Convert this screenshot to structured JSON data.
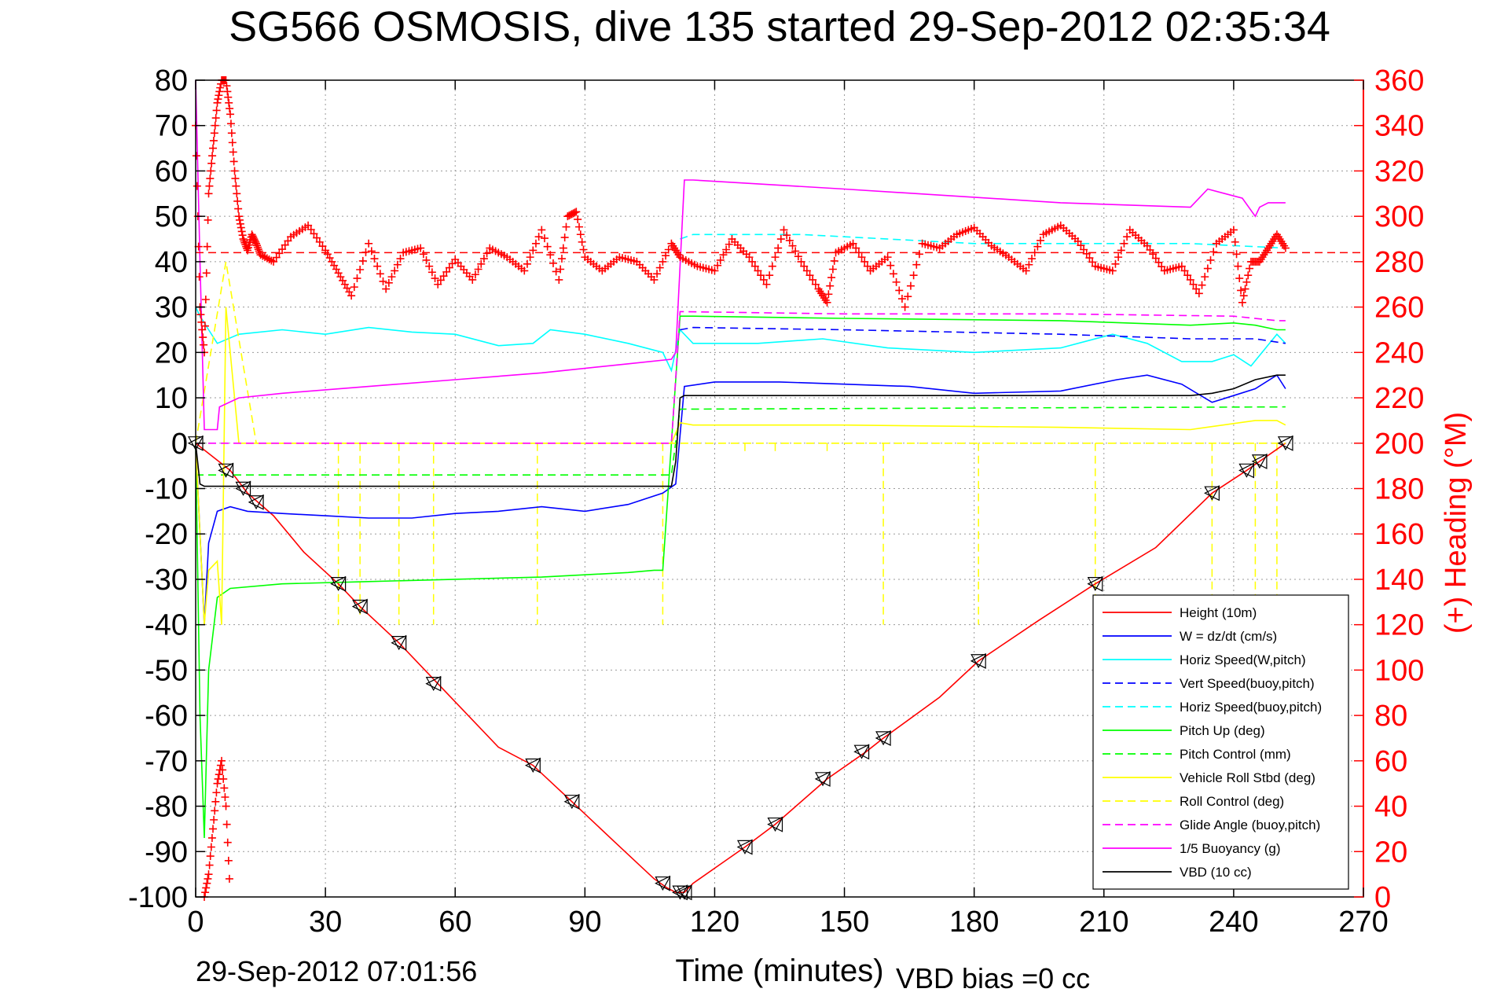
{
  "chart_data": {
    "type": "line",
    "title": "SG566 OSMOSIS, dive 135 started 29-Sep-2012 02:35:34",
    "xlabel": "Time (minutes)",
    "ylabel_right": "(+) Heading (°M)",
    "footer_left": "29-Sep-2012 07:01:56",
    "footer_right": "VBD bias =0 cc",
    "xlim": [
      0,
      270
    ],
    "ylim_left": [
      -100,
      80
    ],
    "ylim_right": [
      0,
      360
    ],
    "xticks": [
      0,
      30,
      60,
      90,
      120,
      150,
      180,
      210,
      240,
      270
    ],
    "yticks_left": [
      -100,
      -90,
      -80,
      -70,
      -60,
      -50,
      -40,
      -30,
      -20,
      -10,
      0,
      10,
      20,
      30,
      40,
      50,
      60,
      70,
      80
    ],
    "yticks_right": [
      0,
      20,
      40,
      60,
      80,
      100,
      120,
      140,
      160,
      180,
      200,
      220,
      240,
      260,
      280,
      300,
      320,
      340,
      360
    ],
    "grid": true,
    "legend_position": "bottom-right",
    "colors": {
      "height": "#ff0000",
      "w": "#0000ff",
      "horiz_speed": "#00ffff",
      "pitch": "#00ff00",
      "roll": "#ffff00",
      "glide": "#ff00ff",
      "buoyancy": "#ff00ff",
      "vbd": "#000000",
      "heading": "#ff0000"
    },
    "series": [
      {
        "name": "Height (10m)",
        "color": "#ff0000",
        "style": "solid",
        "x": [
          0,
          4,
          8,
          12,
          18,
          25,
          33,
          38,
          47,
          56,
          70,
          78,
          87,
          97,
          106,
          109,
          111,
          112.5,
          113,
          115,
          121,
          127,
          134,
          146,
          155,
          159,
          172,
          181,
          195,
          208,
          222,
          235,
          243,
          246,
          252
        ],
        "y": [
          0,
          -3,
          -6,
          -11,
          -16,
          -24,
          -31,
          -36,
          -44,
          -53,
          -67,
          -71,
          -79,
          -88,
          -96,
          -98,
          -99,
          -99,
          -99,
          -97,
          -93,
          -89,
          -84,
          -74,
          -68,
          -65,
          -56,
          -48,
          -39,
          -31,
          -23,
          -11,
          -6,
          -4,
          0
        ]
      },
      {
        "name": "W = dz/dt (cm/s)",
        "color": "#0000ff",
        "style": "solid",
        "x": [
          0,
          2,
          3,
          5,
          8,
          12,
          20,
          30,
          40,
          50,
          60,
          70,
          80,
          90,
          100,
          108,
          111,
          113,
          120,
          135,
          150,
          165,
          180,
          200,
          213,
          220,
          228,
          235,
          240,
          245,
          250,
          252
        ],
        "y": [
          0,
          -40,
          -22,
          -15,
          -14,
          -15,
          -15.5,
          -16,
          -16.5,
          -16.5,
          -15.5,
          -15,
          -14,
          -15,
          -13.5,
          -11,
          -9,
          12.5,
          13.5,
          13.5,
          13,
          12.5,
          11,
          11.5,
          14,
          15,
          13,
          9,
          10.5,
          12,
          15,
          12
        ]
      },
      {
        "name": "Horiz Speed(W,pitch)",
        "color": "#00ffff",
        "style": "solid",
        "x": [
          0,
          1,
          3,
          5,
          10,
          20,
          30,
          40,
          50,
          60,
          70,
          78,
          82,
          90,
          100,
          108,
          110,
          112,
          115,
          130,
          145,
          160,
          180,
          200,
          212,
          220,
          228,
          235,
          240,
          244,
          250,
          252
        ],
        "y": [
          30,
          28,
          25,
          22,
          24,
          25,
          24,
          25.5,
          24.5,
          24,
          21.5,
          22,
          25,
          24,
          22,
          20,
          16,
          25,
          22,
          22,
          23,
          21,
          20,
          21,
          24,
          22,
          18,
          18,
          19.5,
          17,
          24,
          22
        ]
      },
      {
        "name": "Vert Speed(buoy,pitch)",
        "color": "#0000ff",
        "style": "dashed",
        "x": [
          112,
          115,
          150,
          200,
          230,
          245,
          252
        ],
        "y": [
          25,
          25.5,
          25,
          24,
          23,
          23,
          22
        ]
      },
      {
        "name": "Horiz Speed(buoy,pitch)",
        "color": "#00ffff",
        "style": "dashed",
        "x": [
          112,
          115,
          140,
          180,
          230,
          252
        ],
        "y": [
          45,
          46,
          46,
          44,
          44,
          43
        ]
      },
      {
        "name": "Pitch Up (deg)",
        "color": "#00ff00",
        "style": "solid",
        "x": [
          0,
          1,
          2,
          3,
          5,
          8,
          20,
          40,
          60,
          80,
          100,
          106,
          108,
          110,
          112,
          115,
          150,
          200,
          230,
          240,
          245,
          250,
          252
        ],
        "y": [
          0,
          -60,
          -87,
          -50,
          -34,
          -32,
          -31,
          -30.5,
          -30,
          -29.5,
          -28.5,
          -28,
          -28,
          0,
          28,
          28,
          27.5,
          27,
          26,
          26.5,
          26,
          25,
          25
        ]
      },
      {
        "name": "Pitch Control (mm)",
        "color": "#00ff00",
        "style": "dashed",
        "x": [
          0,
          5,
          110,
          112,
          252
        ],
        "y": [
          -7,
          -7,
          -7,
          7.5,
          8
        ]
      },
      {
        "name": "Vehicle Roll Stbd (deg)",
        "color": "#ffff00",
        "style": "solid",
        "x": [
          0,
          2,
          3,
          5,
          6,
          7,
          10,
          30,
          60,
          90,
          110,
          112,
          115,
          150,
          200,
          230,
          245,
          250,
          252
        ],
        "y": [
          0,
          -40,
          -28,
          -26,
          -40,
          30,
          0,
          0,
          0,
          0,
          0,
          4.5,
          4,
          4,
          3.5,
          3,
          5,
          5,
          4
        ]
      },
      {
        "name": "Roll Control (deg)",
        "color": "#ffff00",
        "style": "dashed",
        "x": [
          0,
          7,
          14,
          33,
          38,
          47,
          55,
          79,
          108,
          112,
          200,
          252
        ],
        "y": [
          0,
          40,
          0,
          0,
          0,
          0,
          0,
          0,
          0,
          0,
          0,
          0
        ]
      },
      {
        "name": "Glide Angle (buoy,pitch)",
        "color": "#ff00ff",
        "style": "dashed",
        "x": [
          0,
          10,
          50,
          100,
          110,
          112,
          150,
          200,
          240,
          250,
          252
        ],
        "y": [
          0,
          0,
          0,
          0,
          0,
          29,
          28.5,
          28.5,
          28,
          27,
          27
        ]
      },
      {
        "name": "1/5 Buoyancy (g)",
        "color": "#ff00ff",
        "style": "solid",
        "x": [
          0,
          1,
          2,
          5,
          5.5,
          10,
          20,
          40,
          60,
          80,
          100,
          110,
          111,
          113,
          115,
          150,
          200,
          230,
          234,
          238,
          242,
          245,
          246,
          248,
          252
        ],
        "y": [
          80,
          40,
          3,
          3,
          8,
          10,
          11,
          12.5,
          14,
          15.5,
          17.5,
          18.5,
          20,
          58,
          58,
          56,
          53,
          52,
          56,
          55,
          54,
          50,
          52,
          53,
          53
        ]
      },
      {
        "name": "VBD (10 cc)",
        "color": "#000000",
        "style": "solid",
        "x": [
          0,
          1,
          2,
          110,
          111,
          112,
          113,
          230,
          235,
          240,
          245,
          250,
          252
        ],
        "y": [
          0,
          -9,
          -9.5,
          -9.5,
          -4,
          10,
          10.5,
          10.5,
          11,
          12,
          14,
          15,
          15
        ]
      }
    ],
    "heading": {
      "name": "Heading",
      "color": "#ff0000",
      "style": "plus-markers",
      "reference": 284,
      "x": [
        0,
        1,
        2,
        3,
        4,
        5,
        6,
        7,
        8,
        9,
        10,
        11,
        12,
        13,
        14,
        15,
        18,
        22,
        26,
        30,
        33,
        36,
        40,
        44,
        48,
        52,
        56,
        60,
        64,
        68,
        72,
        76,
        80,
        84,
        86,
        88,
        90,
        94,
        98,
        102,
        106,
        110,
        112,
        116,
        120,
        124,
        128,
        132,
        136,
        140,
        144,
        146,
        148,
        152,
        156,
        160,
        164,
        168,
        172,
        176,
        180,
        184,
        188,
        192,
        196,
        200,
        204,
        208,
        212,
        216,
        220,
        224,
        228,
        232,
        236,
        240,
        242,
        244,
        246,
        248,
        250,
        252
      ],
      "y": [
        340,
        260,
        240,
        310,
        330,
        350,
        360,
        360,
        345,
        320,
        300,
        290,
        285,
        292,
        288,
        283,
        280,
        291,
        296,
        285,
        275,
        265,
        288,
        268,
        284,
        286,
        270,
        281,
        272,
        286,
        282,
        276,
        294,
        272,
        300,
        302,
        282,
        276,
        282,
        280,
        272,
        288,
        282,
        278,
        276,
        290,
        282,
        270,
        294,
        280,
        268,
        262,
        284,
        288,
        276,
        282,
        260,
        288,
        286,
        292,
        295,
        287,
        282,
        276,
        292,
        296,
        289,
        278,
        276,
        294,
        287,
        276,
        278,
        266,
        288,
        294,
        262,
        280,
        280,
        286,
        292,
        286
      ]
    },
    "heading_spikes": [
      {
        "x": [
          2,
          3,
          4,
          5,
          6,
          7,
          8
        ],
        "y": [
          0,
          10,
          30,
          50,
          60,
          40,
          0
        ]
      }
    ],
    "markers": {
      "style": "triangles",
      "x": [
        0,
        7,
        11,
        14,
        33,
        38,
        47,
        55,
        78,
        87,
        108,
        112,
        113,
        127,
        134,
        145,
        154,
        159,
        181,
        208,
        235,
        243,
        246,
        252
      ],
      "y": [
        0,
        -6,
        -10,
        -13,
        -31,
        -36,
        -44,
        -53,
        -71,
        -79,
        -97,
        -99,
        -99,
        -89,
        -84,
        -74,
        -68,
        -65,
        -48,
        -31,
        -11,
        -6,
        -4,
        0
      ]
    },
    "roll_spikes": {
      "x": [
        33,
        38,
        47,
        55,
        79,
        108,
        127,
        134,
        146,
        159,
        181,
        208,
        235,
        245,
        250
      ],
      "y_from": 0,
      "y_to": [
        -40,
        -38,
        -40,
        -40,
        -40,
        -40,
        -2,
        -2,
        -2,
        -40,
        -40,
        -40,
        -40,
        -40,
        -40
      ]
    },
    "legend": [
      {
        "label": "Height (10m)",
        "color": "#ff0000",
        "style": "solid"
      },
      {
        "label": "W = dz/dt (cm/s)",
        "color": "#0000ff",
        "style": "solid"
      },
      {
        "label": "Horiz Speed(W,pitch)",
        "color": "#00ffff",
        "style": "solid"
      },
      {
        "label": "Vert Speed(buoy,pitch)",
        "color": "#0000ff",
        "style": "dashed"
      },
      {
        "label": "Horiz Speed(buoy,pitch)",
        "color": "#00ffff",
        "style": "dashed"
      },
      {
        "label": "Pitch Up (deg)",
        "color": "#00ff00",
        "style": "solid"
      },
      {
        "label": "Pitch Control (mm)",
        "color": "#00ff00",
        "style": "dashed"
      },
      {
        "label": "Vehicle Roll Stbd (deg)",
        "color": "#ffff00",
        "style": "solid"
      },
      {
        "label": "Roll Control (deg)",
        "color": "#ffff00",
        "style": "dashed"
      },
      {
        "label": "Glide Angle (buoy,pitch)",
        "color": "#ff00ff",
        "style": "dashed"
      },
      {
        "label": "1/5 Buoyancy (g)",
        "color": "#ff00ff",
        "style": "solid"
      },
      {
        "label": "VBD (10 cc)",
        "color": "#000000",
        "style": "solid"
      }
    ]
  }
}
